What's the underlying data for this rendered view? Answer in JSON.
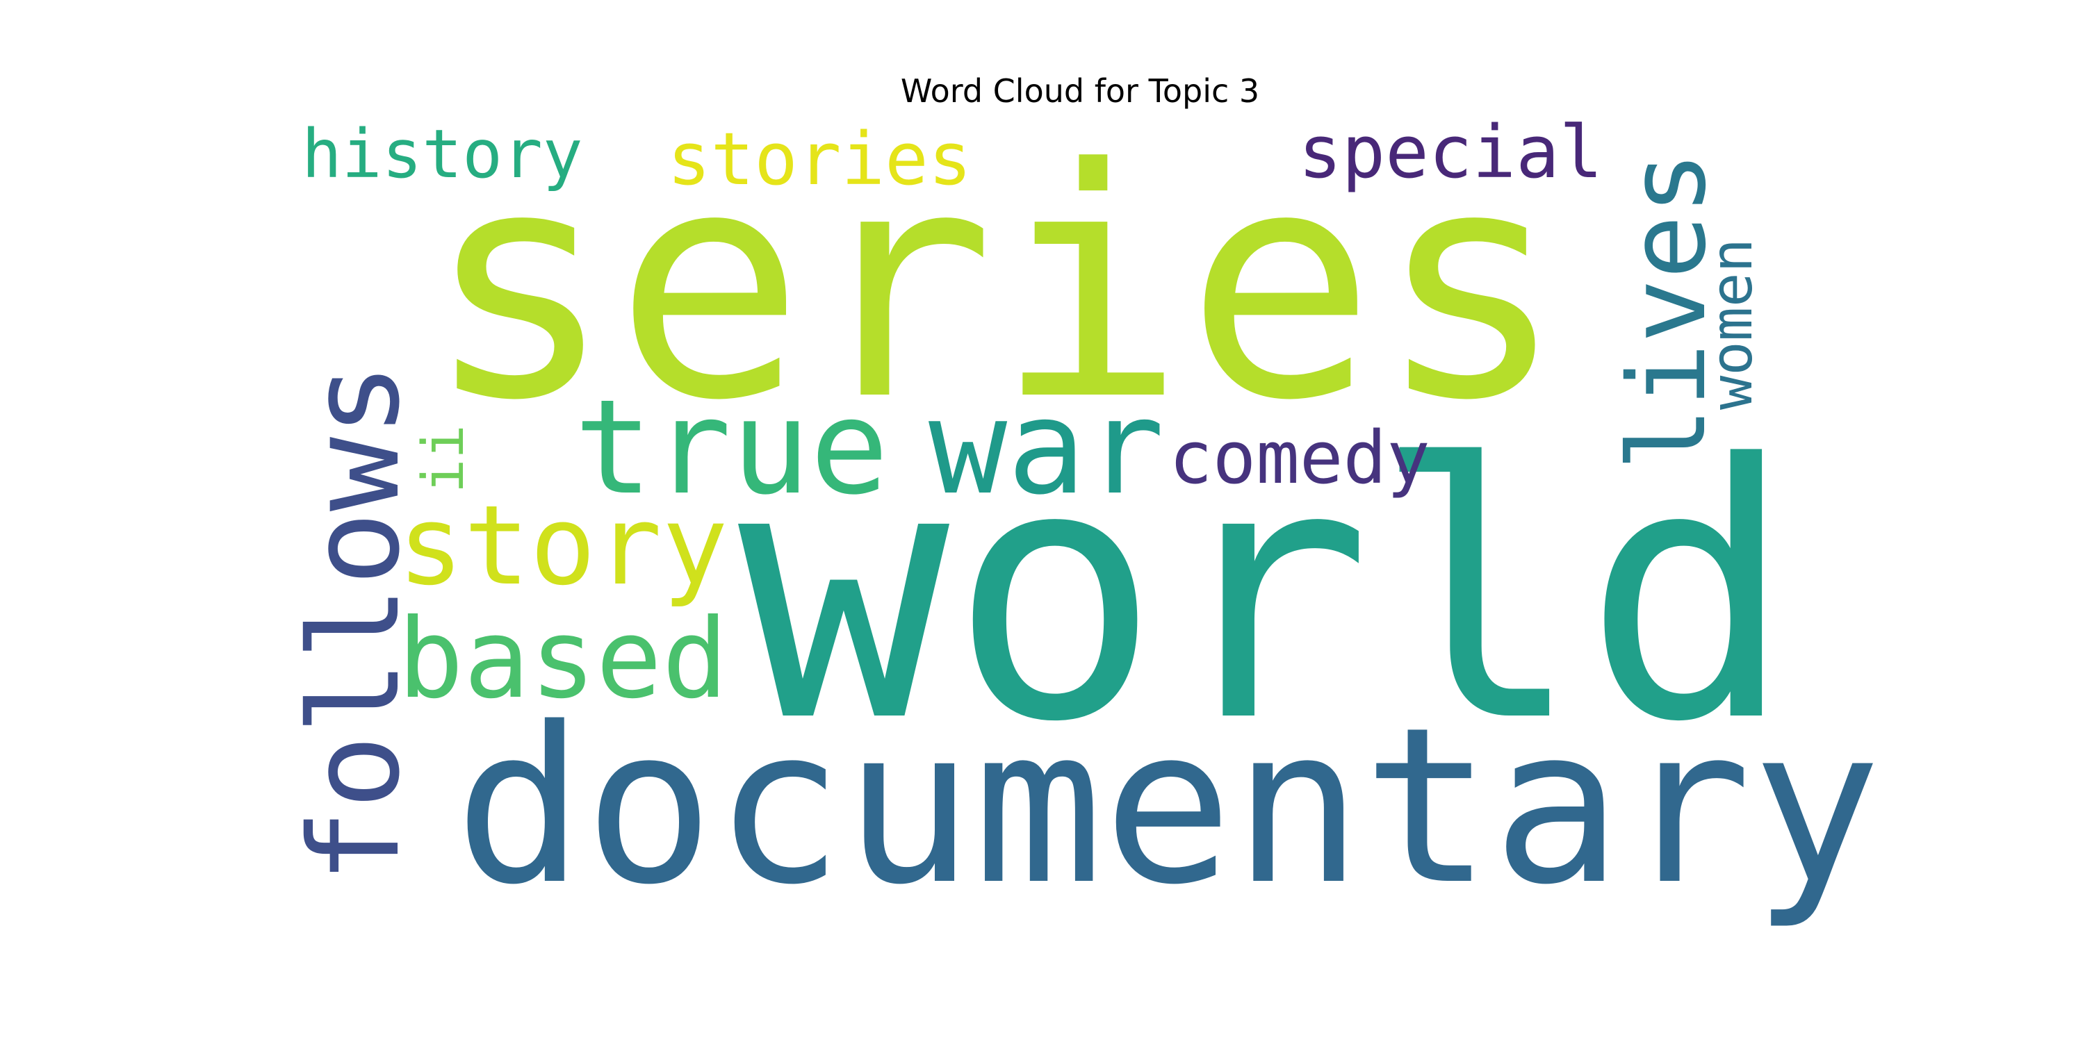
{
  "chart_data": {
    "type": "wordcloud",
    "title": "Word Cloud for Topic 3",
    "background": "#ffffff",
    "words": [
      {
        "text": "series",
        "weight": 1.0,
        "color": "#b5de2b",
        "orientation": "horizontal"
      },
      {
        "text": "world",
        "weight": 0.98,
        "color": "#21a08a",
        "orientation": "horizontal"
      },
      {
        "text": "documentary",
        "weight": 0.6,
        "color": "#31688e",
        "orientation": "horizontal"
      },
      {
        "text": "follows",
        "weight": 0.42,
        "color": "#3e4f8a",
        "orientation": "vertical"
      },
      {
        "text": "true",
        "weight": 0.36,
        "color": "#35b779",
        "orientation": "horizontal"
      },
      {
        "text": "war",
        "weight": 0.36,
        "color": "#1f9a8a",
        "orientation": "horizontal"
      },
      {
        "text": "based",
        "weight": 0.32,
        "color": "#4ac16d",
        "orientation": "horizontal"
      },
      {
        "text": "story",
        "weight": 0.28,
        "color": "#d0e11c",
        "orientation": "horizontal"
      },
      {
        "text": "lives",
        "weight": 0.28,
        "color": "#2a788e",
        "orientation": "vertical"
      },
      {
        "text": "comedy",
        "weight": 0.19,
        "color": "#46337e",
        "orientation": "horizontal"
      },
      {
        "text": "special",
        "weight": 0.19,
        "color": "#482878",
        "orientation": "horizontal"
      },
      {
        "text": "stories",
        "weight": 0.19,
        "color": "#e5e419",
        "orientation": "horizontal"
      },
      {
        "text": "history",
        "weight": 0.19,
        "color": "#26ad81",
        "orientation": "horizontal"
      },
      {
        "text": "women",
        "weight": 0.17,
        "color": "#2c738e",
        "orientation": "vertical"
      },
      {
        "text": "ii",
        "weight": 0.14,
        "color": "#6ece58",
        "orientation": "vertical"
      }
    ]
  }
}
